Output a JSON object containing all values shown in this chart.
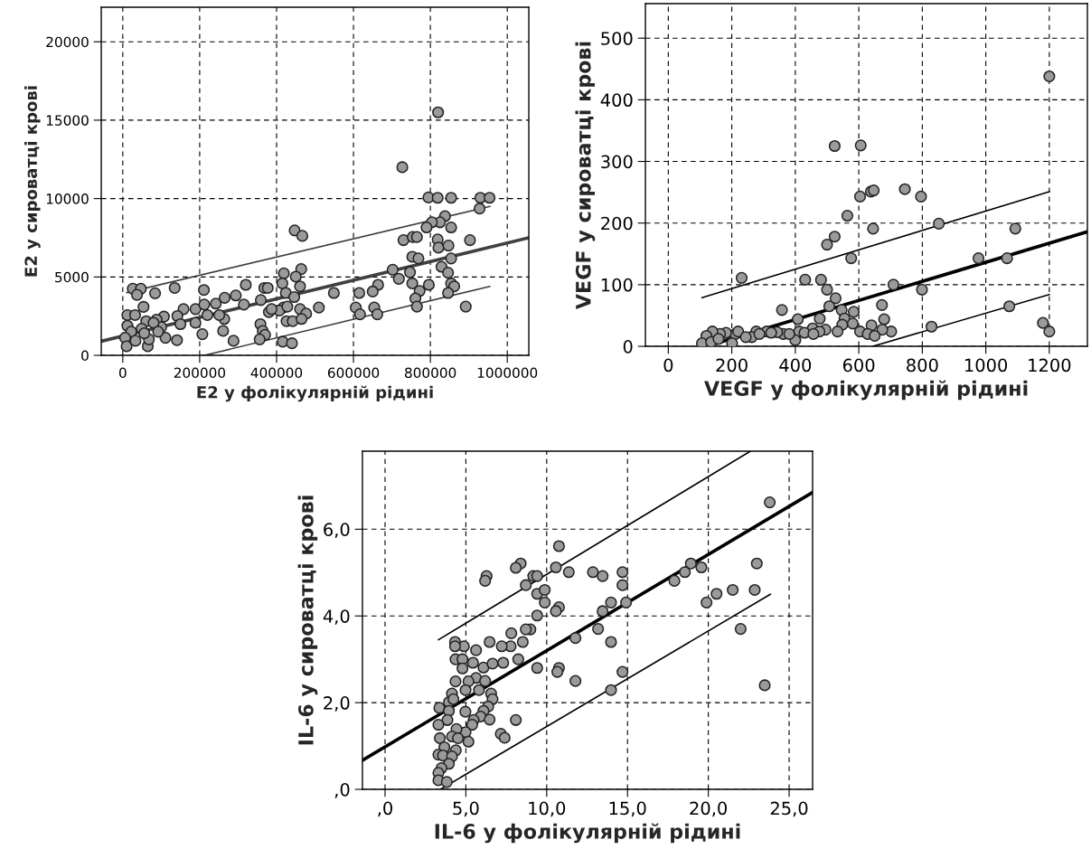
{
  "chart_data": [
    {
      "type": "scatter",
      "xlabel": "E2 у фолікулярній рідині",
      "ylabel": "E2 у сироватці крові",
      "xlim": [
        -56000,
        1056000
      ],
      "ylim": [
        0,
        22200
      ],
      "xticks": [
        0,
        200000,
        400000,
        600000,
        800000,
        1000000
      ],
      "yticks": [
        0,
        5000,
        10000,
        15000,
        20000
      ],
      "grid": true,
      "marker": "circle",
      "legend": false,
      "series": [
        {
          "color": "#9a9a9a",
          "x": [
            820000,
            727000,
            795000,
            819000,
            854000,
            930000,
            954000,
            928000,
            838000,
            825000,
            804000,
            790000,
            854000,
            730000,
            754000,
            765000,
            819000,
            903000,
            821000,
            847000,
            753000,
            769000,
            854000,
            702000,
            747000,
            829000,
            846000,
            718000,
            753000,
            796000,
            854000,
            772000,
            862000,
            761000,
            846000,
            765000,
            892000,
            664000,
            650000,
            615000,
            606000,
            617000,
            654000,
            662000,
            549000,
            510000,
            447000,
            467000,
            419000,
            464000,
            450000,
            415000,
            424000,
            446000,
            461000,
            418000,
            407000,
            428000,
            461000,
            477000,
            426000,
            442000,
            465000,
            416000,
            440000,
            320000,
            368000,
            377000,
            359000,
            380000,
            387000,
            358000,
            364000,
            370000,
            356000,
            288000,
            261000,
            264000,
            251000,
            242000,
            265000,
            294000,
            315000,
            211000,
            207000,
            189000,
            189000,
            212000,
            220000,
            158000,
            142000,
            150000,
            141000,
            135000,
            107000,
            88000,
            100000,
            111000,
            84000,
            26000,
            47000,
            37000,
            54000,
            12000,
            32000,
            61000,
            80000,
            12000,
            22000,
            49000,
            6000,
            10000,
            65000,
            33000,
            92000,
            68000,
            56000
          ],
          "values": [
            15500,
            12000,
            10070,
            10050,
            10050,
            10050,
            10050,
            9360,
            8880,
            8490,
            8490,
            8160,
            8160,
            7350,
            7550,
            7550,
            7390,
            7350,
            6870,
            7000,
            6290,
            6180,
            6180,
            5460,
            5300,
            5650,
            5270,
            4880,
            4590,
            4500,
            4590,
            4110,
            4400,
            3630,
            3980,
            3110,
            3110,
            4500,
            4070,
            3980,
            3050,
            2620,
            3050,
            2620,
            3980,
            3050,
            7970,
            7620,
            5230,
            5500,
            5020,
            4590,
            3980,
            3720,
            4400,
            3050,
            2860,
            3110,
            2950,
            2660,
            2180,
            2180,
            2320,
            870,
            770,
            4500,
            4300,
            4300,
            3530,
            2760,
            2950,
            1990,
            1560,
            1310,
            1020,
            930,
            1560,
            2320,
            2570,
            3300,
            3670,
            3820,
            3240,
            4170,
            1350,
            2950,
            2080,
            3240,
            2570,
            2950,
            2510,
            1990,
            970,
            4300,
            2470,
            2280,
            1800,
            1120,
            3960,
            4250,
            4250,
            3860,
            3090,
            2570,
            2570,
            2180,
            2080,
            1890,
            1510,
            1700,
            1120,
            580,
            580,
            930,
            1510,
            1020,
            1410
          ]
        },
        {
          "type": "line",
          "marker": "none",
          "color": "#404040",
          "x": [
            -56000,
            1056000
          ],
          "values": [
            900,
            7500
          ]
        },
        {
          "type": "line",
          "marker": "none",
          "color": "#404040",
          "x": [
            10000,
            955000
          ],
          "values": [
            4000,
            9500
          ]
        },
        {
          "type": "line",
          "marker": "none",
          "color": "#404040",
          "x": [
            212000,
            955000
          ],
          "values": [
            0,
            4400
          ]
        }
      ]
    },
    {
      "type": "scatter",
      "xlabel": "VEGF у фолікулярній рідині",
      "ylabel": "VEGF у сироватці крові",
      "xlim": [
        -72,
        1320
      ],
      "ylim": [
        0,
        556
      ],
      "xticks": [
        0,
        200,
        400,
        600,
        800,
        1000,
        1200
      ],
      "yticks": [
        0,
        100,
        200,
        300,
        400,
        500
      ],
      "grid": true,
      "marker": "circle",
      "legend": false,
      "series": [
        {
          "color": "#9a9a9a",
          "x": [
            1200,
            524,
            606,
            638,
            647,
            745,
            796,
            604,
            564,
            645,
            852,
            1093,
            524,
            500,
            576,
            977,
            1067,
            231,
            431,
            481,
            709,
            500,
            799,
            527,
            673,
            1074,
            358,
            507,
            546,
            584,
            408,
            477,
            680,
            555,
            548,
            581,
            640,
            829,
            1180,
            1200,
            702,
            674,
            604,
            628,
            650,
            533,
            495,
            455,
            476,
            412,
            400,
            362,
            343,
            310,
            277,
            263,
            211,
            201,
            182,
            163,
            139,
            120,
            106,
            135,
            158,
            220,
            244,
            287,
            324,
            381,
            429,
            457
          ],
          "values": [
            438,
            325,
            326,
            251,
            253,
            255,
            243,
            243,
            212,
            191,
            199,
            191,
            178,
            165,
            143,
            143,
            143,
            111,
            108,
            108,
            100,
            92,
            92,
            78,
            67,
            65,
            59,
            65,
            59,
            56,
            44,
            45,
            44,
            45,
            35,
            37,
            34,
            32,
            38,
            24,
            24,
            27,
            24,
            20,
            17,
            24,
            27,
            29,
            24,
            24,
            10,
            20,
            23,
            24,
            24,
            15,
            20,
            5,
            22,
            20,
            24,
            17,
            5,
            7,
            12,
            24,
            15,
            20,
            22,
            20,
            22,
            20
          ]
        },
        {
          "type": "line",
          "marker": "none",
          "color": "#000000",
          "x": [
            120,
            1320
          ],
          "values": [
            0,
            186
          ]
        },
        {
          "type": "line",
          "marker": "none",
          "color": "#000000",
          "x": [
            106,
            1200
          ],
          "values": [
            79,
            251
          ]
        },
        {
          "type": "line",
          "marker": "none",
          "color": "#000000",
          "x": [
            644,
            1200
          ],
          "values": [
            0,
            84
          ]
        }
      ]
    },
    {
      "type": "scatter",
      "xlabel": "IL-6 у фолікулярній рідині",
      "ylabel": "IL-6 у сироватці крові",
      "xlim": [
        -1.4,
        26.45
      ],
      "ylim": [
        0,
        7.8
      ],
      "xticks": [
        {
          "value": 0,
          "label": ",0"
        },
        {
          "value": 5,
          "label": "5,0"
        },
        {
          "value": 10,
          "label": "10,0"
        },
        {
          "value": 15,
          "label": "15,0"
        },
        {
          "value": 20,
          "label": "20,0"
        },
        {
          "value": 25,
          "label": "25,0"
        }
      ],
      "yticks": [
        {
          "value": 0,
          "label": ",0"
        },
        {
          "value": 2,
          "label": "2,0"
        },
        {
          "value": 4,
          "label": "4,0"
        },
        {
          "value": 6,
          "label": "6,0"
        }
      ],
      "grid": true,
      "marker": "circle",
      "legend": false,
      "series": [
        {
          "color": "#9a9a9a",
          "x": [
            23.8,
            10.76,
            8.39,
            8.09,
            6.28,
            6.19,
            10.57,
            11.37,
            12.86,
            13.46,
            14.69,
            14.69,
            14.91,
            9.17,
            9.41,
            8.71,
            9.41,
            9.88,
            9.88,
            10.76,
            10.57,
            9.41,
            17.9,
            18.55,
            18.92,
            19.57,
            19.89,
            20.51,
            21.51,
            22.87,
            23.0,
            22.0,
            23.49,
            13.98,
            13.46,
            13.18,
            13.98,
            11.78,
            9.41,
            10.76,
            10.66,
            11.78,
            14.69,
            13.98,
            8.99,
            8.71,
            7.81,
            8.52,
            7.77,
            7.22,
            6.47,
            5.63,
            4.88,
            4.33,
            4.33,
            4.36,
            4.79,
            5.44,
            6.09,
            6.65,
            7.31,
            8.24,
            4.79,
            5.63,
            6.19,
            5.16,
            4.36,
            4.98,
            5.81,
            4.14,
            3.95,
            3.36,
            4.23,
            6.56,
            6.65,
            6.38,
            6.09,
            5.91,
            5.48,
            4.97,
            6.47,
            8.09,
            5.39,
            4.98,
            4.42,
            3.95,
            3.86,
            3.3,
            3.39,
            4.14,
            4.51,
            5.16,
            4.38,
            3.67,
            3.3,
            3.58,
            4.14,
            3.95,
            3.49,
            3.3,
            3.3,
            3.82,
            7.16,
            7.4
          ],
          "values": [
            6.62,
            5.61,
            5.21,
            5.11,
            4.92,
            4.81,
            5.12,
            5.01,
            5.01,
            4.92,
            5.01,
            4.71,
            4.31,
            4.92,
            4.92,
            4.71,
            4.51,
            4.6,
            4.31,
            4.2,
            4.11,
            4.01,
            4.81,
            5.01,
            5.21,
            5.12,
            4.31,
            4.51,
            4.6,
            4.6,
            5.21,
            3.7,
            2.4,
            4.31,
            4.11,
            3.7,
            3.4,
            3.49,
            2.8,
            2.8,
            2.71,
            2.5,
            2.71,
            2.29,
            3.69,
            3.69,
            3.6,
            3.4,
            3.3,
            3.3,
            3.4,
            3.21,
            3.3,
            3.4,
            3.3,
            3.0,
            3.0,
            2.92,
            2.81,
            2.9,
            2.92,
            3.0,
            2.79,
            2.57,
            2.5,
            2.49,
            2.49,
            2.29,
            2.29,
            2.21,
            2.01,
            1.88,
            2.08,
            2.21,
            2.08,
            1.91,
            1.81,
            1.68,
            1.6,
            1.79,
            1.61,
            1.6,
            1.49,
            1.32,
            1.39,
            1.81,
            1.6,
            1.49,
            1.18,
            1.22,
            1.18,
            1.1,
            0.9,
            0.97,
            0.8,
            0.78,
            0.76,
            0.59,
            0.49,
            0.38,
            0.21,
            0.17,
            1.28,
            1.19
          ]
        },
        {
          "type": "line",
          "marker": "none",
          "color": "#000000",
          "x": [
            -1.4,
            26.45
          ],
          "values": [
            0.67,
            6.85
          ]
        },
        {
          "type": "line",
          "marker": "none",
          "color": "#000000",
          "x": [
            3.3,
            22.6
          ],
          "values": [
            3.45,
            7.8
          ]
        },
        {
          "type": "line",
          "marker": "none",
          "color": "#000000",
          "x": [
            3.43,
            23.84
          ],
          "values": [
            0,
            4.5
          ]
        }
      ]
    }
  ]
}
